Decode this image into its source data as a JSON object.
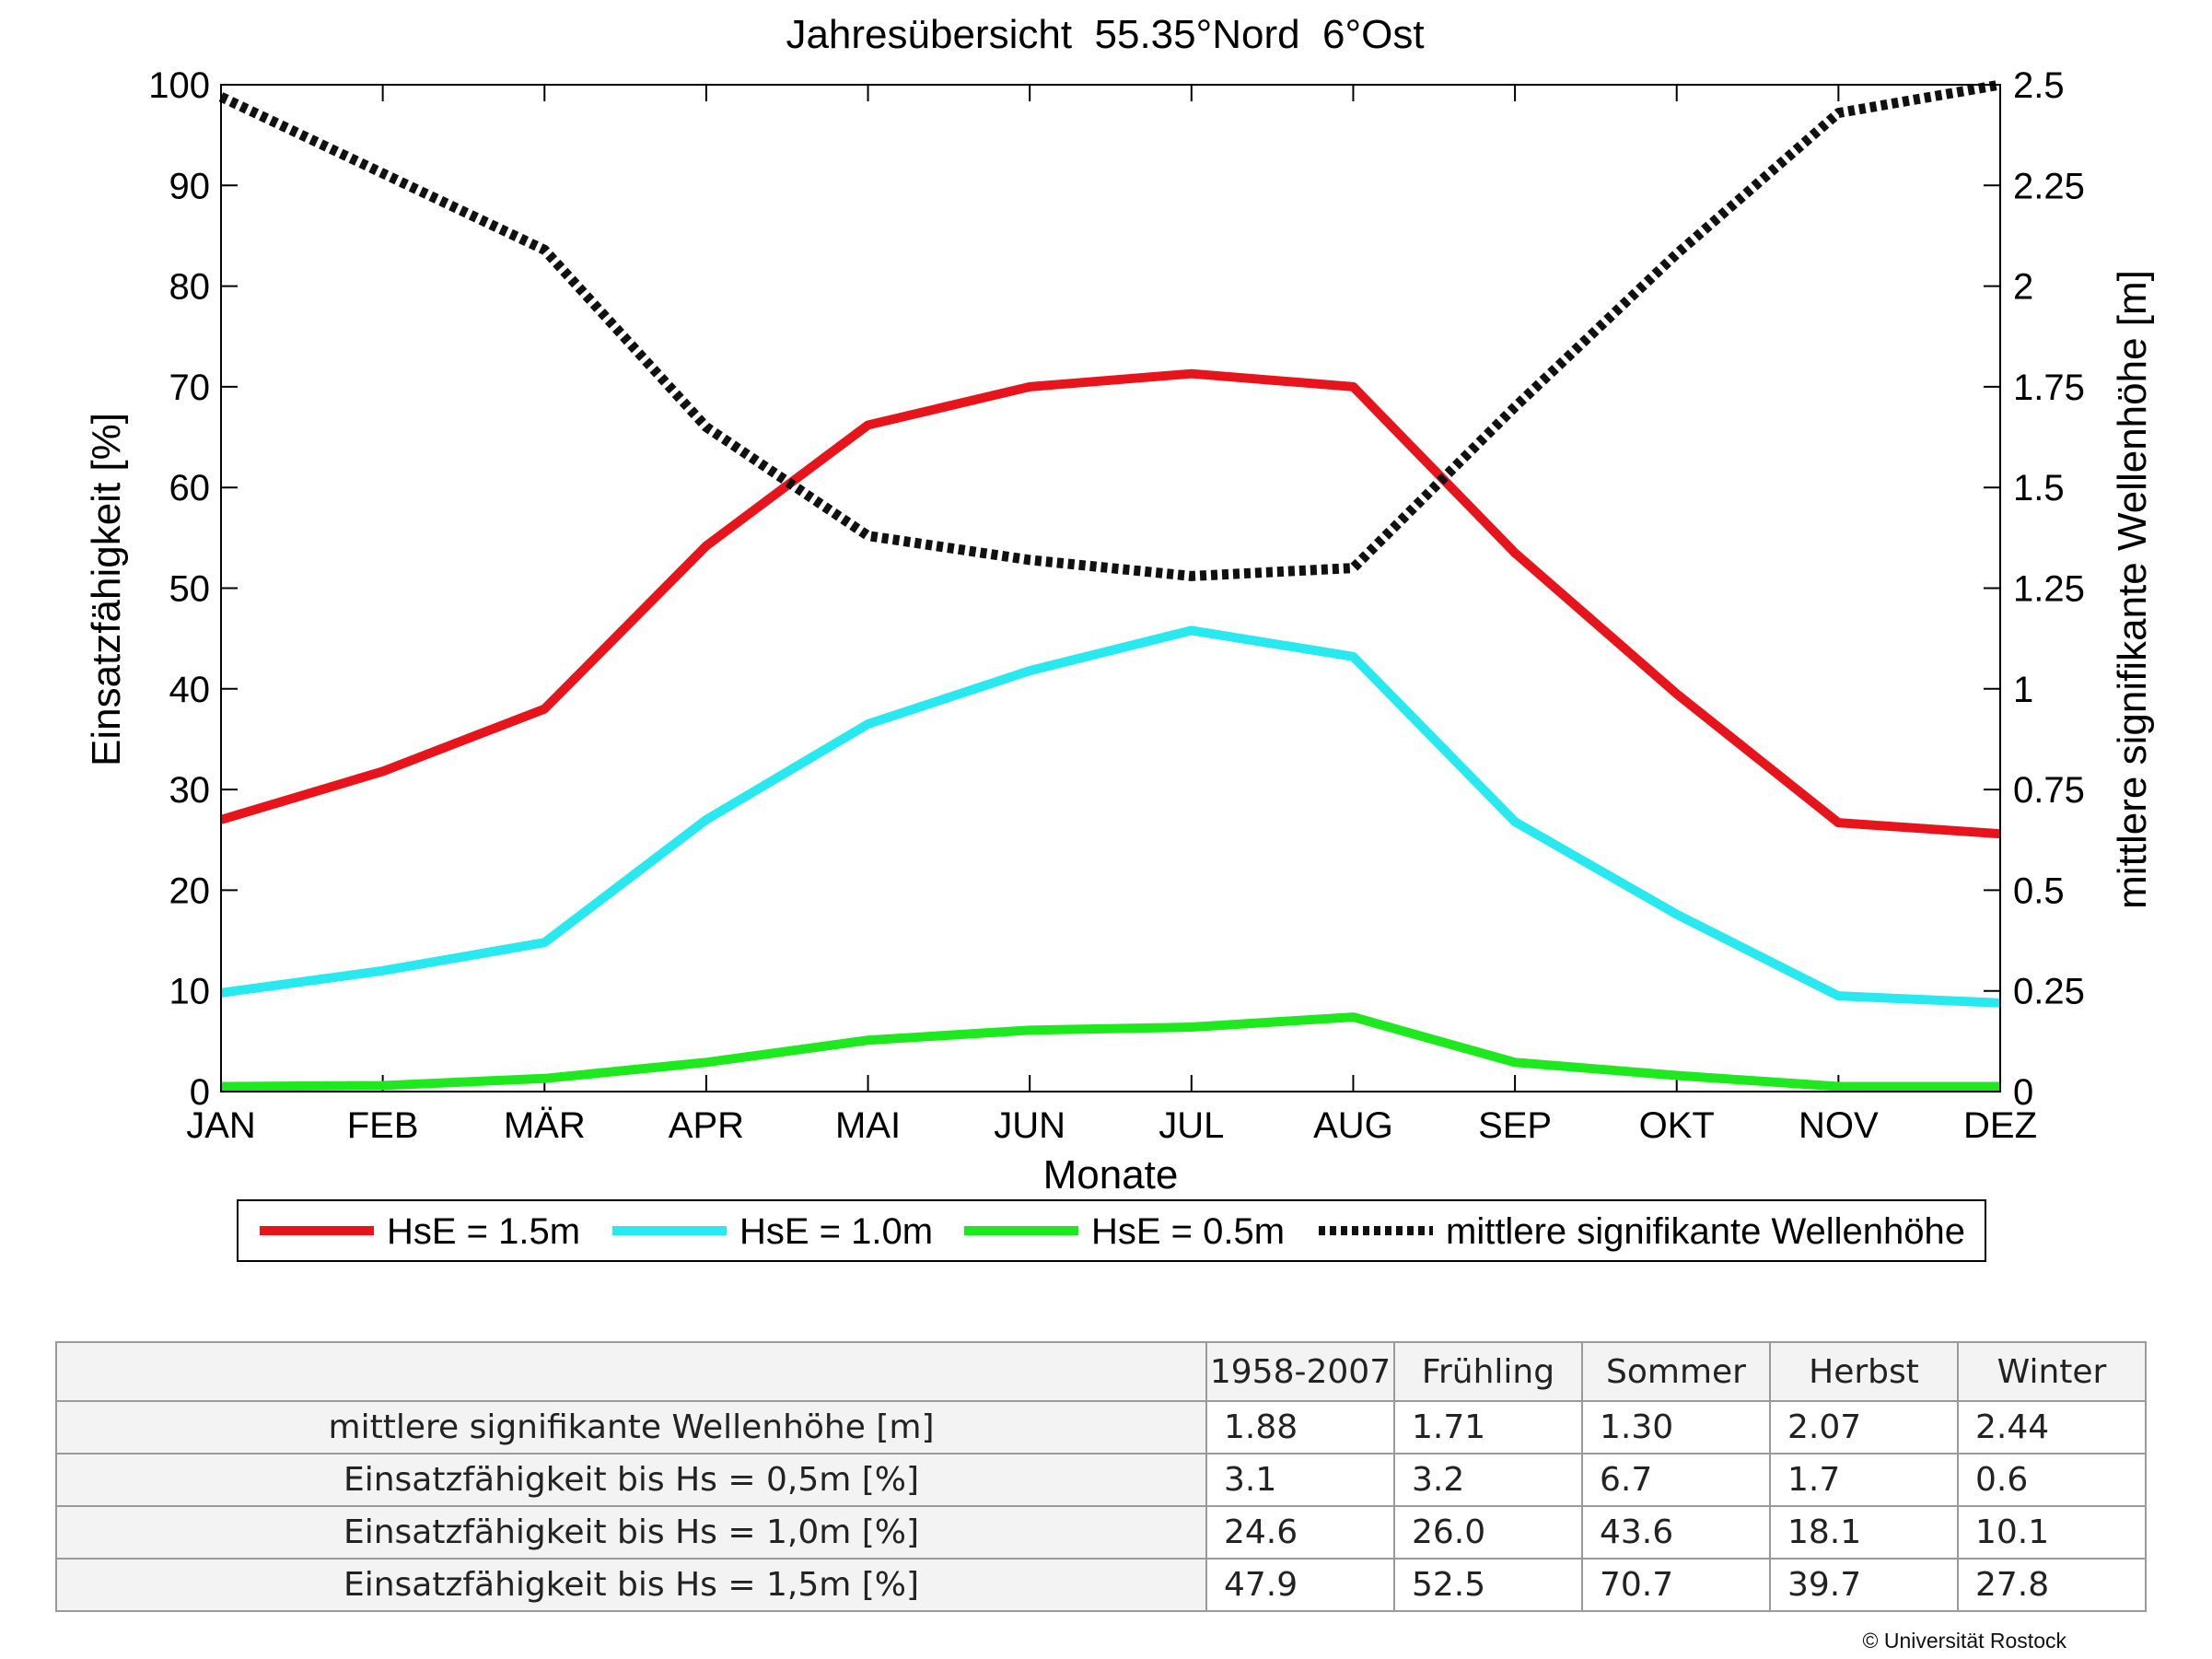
{
  "chart_data": {
    "type": "line",
    "title": "Jahresübersicht  55.35°Nord  6°Ost",
    "xlabel": "Monate",
    "ylabel": "Einsatzfähigkeit [%]",
    "y2label": "mittlere signifikante Wellenhöhe [m]",
    "categories": [
      "JAN",
      "FEB",
      "MÄR",
      "APR",
      "MAI",
      "JUN",
      "JUL",
      "AUG",
      "SEP",
      "OKT",
      "NOV",
      "DEZ"
    ],
    "ylim": [
      0,
      100
    ],
    "y2lim": [
      0,
      2.5
    ],
    "yticks": [
      0,
      10,
      20,
      30,
      40,
      50,
      60,
      70,
      80,
      90,
      100
    ],
    "y2ticks": [
      "0",
      "0.25",
      "0.5",
      "0.75",
      "1",
      "1.25",
      "1.5",
      "1.75",
      "2",
      "2.25",
      "2.5"
    ],
    "grid": false,
    "legend_position": "bottom",
    "series": [
      {
        "name": "HsE = 1.5m",
        "color": "#e8141c",
        "axis": "left",
        "style": "solid",
        "values": [
          27,
          31.8,
          38,
          54.2,
          66.2,
          70,
          71.3,
          70,
          53.5,
          39.5,
          26.7,
          25.6
        ]
      },
      {
        "name": "HsE = 1.0m",
        "color": "#28e8f0",
        "axis": "left",
        "style": "solid",
        "values": [
          9.8,
          12,
          14.8,
          27,
          36.5,
          41.8,
          45.8,
          43.2,
          26.8,
          17.6,
          9.5,
          8.8
        ]
      },
      {
        "name": "HsE = 0.5m",
        "color": "#1ee81e",
        "axis": "left",
        "style": "solid",
        "values": [
          0.5,
          0.6,
          1.3,
          2.9,
          5.1,
          6.1,
          6.4,
          7.4,
          2.9,
          1.6,
          0.5,
          0.5
        ]
      },
      {
        "name": "mittlere signifikante Wellenhöhe",
        "color": "#111111",
        "axis": "right",
        "style": "dotted",
        "values": [
          2.47,
          2.28,
          2.09,
          1.65,
          1.38,
          1.32,
          1.28,
          1.3,
          1.7,
          2.08,
          2.43,
          2.5
        ]
      }
    ]
  },
  "table": {
    "headers": [
      "",
      "1958-2007",
      "Frühling",
      "Sommer",
      "Herbst",
      "Winter"
    ],
    "rows": [
      {
        "label": "mittlere signifikante Wellenhöhe [m]",
        "values": [
          "1.88",
          "1.71",
          "1.30",
          "2.07",
          "2.44"
        ]
      },
      {
        "label": "Einsatzfähigkeit bis Hs = 0,5m [%]",
        "values": [
          "3.1",
          "3.2",
          "6.7",
          "1.7",
          "0.6"
        ]
      },
      {
        "label": "Einsatzfähigkeit bis Hs = 1,0m [%]",
        "values": [
          "24.6",
          "26.0",
          "43.6",
          "18.1",
          "10.1"
        ]
      },
      {
        "label": "Einsatzfähigkeit bis Hs = 1,5m [%]",
        "values": [
          "47.9",
          "52.5",
          "70.7",
          "39.7",
          "27.8"
        ]
      }
    ]
  },
  "copyright": "© Universität Rostock"
}
